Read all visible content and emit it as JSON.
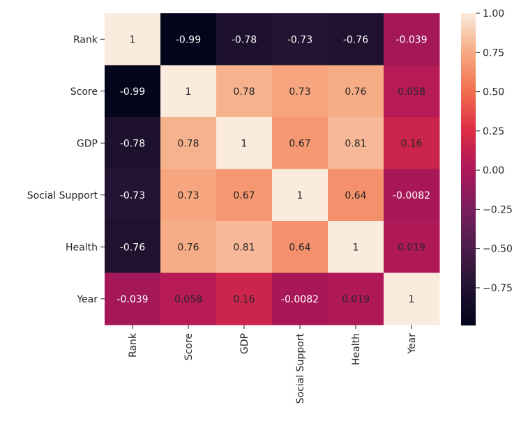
{
  "chart_data": {
    "type": "heatmap",
    "title": "",
    "xlabel": "",
    "ylabel": "",
    "x_categories": [
      "Rank",
      "Score",
      "GDP",
      "Social Support",
      "Health",
      "Year"
    ],
    "y_categories": [
      "Rank",
      "Score",
      "GDP",
      "Social Support",
      "Health",
      "Year"
    ],
    "values": [
      [
        1,
        -0.99,
        -0.78,
        -0.73,
        -0.76,
        -0.039
      ],
      [
        -0.99,
        1,
        0.78,
        0.73,
        0.76,
        0.058
      ],
      [
        -0.78,
        0.78,
        1,
        0.67,
        0.81,
        0.16
      ],
      [
        -0.73,
        0.73,
        0.67,
        1,
        0.64,
        -0.0082
      ],
      [
        -0.76,
        0.76,
        0.81,
        0.64,
        1,
        0.019
      ],
      [
        -0.039,
        0.058,
        0.16,
        -0.0082,
        0.019,
        1
      ]
    ],
    "annotations": [
      [
        "1",
        "-0.99",
        "-0.78",
        "-0.73",
        "-0.76",
        "-0.039"
      ],
      [
        "-0.99",
        "1",
        "0.78",
        "0.73",
        "0.76",
        "0.058"
      ],
      [
        "-0.78",
        "0.78",
        "1",
        "0.67",
        "0.81",
        "0.16"
      ],
      [
        "-0.73",
        "0.73",
        "0.67",
        "1",
        "0.64",
        "-0.0082"
      ],
      [
        "-0.76",
        "0.76",
        "0.81",
        "0.64",
        "1",
        "0.019"
      ],
      [
        "-0.039",
        "0.058",
        "0.16",
        "-0.0082",
        "0.019",
        "1"
      ]
    ],
    "colormap": "rocket",
    "colorbar": {
      "range": [
        -0.99,
        1.0
      ],
      "ticks": [
        1.0,
        0.75,
        0.5,
        0.25,
        0.0,
        -0.25,
        -0.5,
        -0.75
      ],
      "tick_labels": [
        "1.00",
        "0.75",
        "0.50",
        "0.25",
        "0.00",
        "−0.25",
        "−0.50",
        "−0.75"
      ],
      "placement": "right"
    }
  }
}
